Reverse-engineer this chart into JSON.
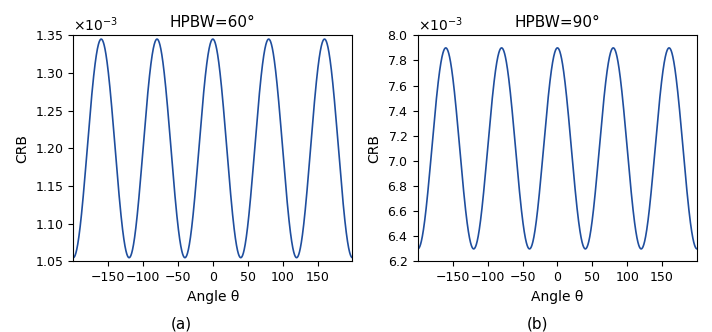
{
  "title_a": "HPBW=60°",
  "title_b": "HPBW=90°",
  "xlabel": "Angle θ",
  "ylabel": "CRB",
  "label_a": "(a)",
  "label_b": "(b)",
  "xmin": -200,
  "xmax": 200,
  "xticks": [
    -150,
    -100,
    -50,
    0,
    50,
    100,
    150
  ],
  "ylim_a": [
    0.00105,
    0.00135
  ],
  "ylim_b": [
    0.0062,
    0.008
  ],
  "yticks_a": [
    0.00105,
    0.0011,
    0.00115,
    0.0012,
    0.00125,
    0.0013,
    0.00135
  ],
  "yticks_b": [
    0.0062,
    0.0064,
    0.0066,
    0.0068,
    0.007,
    0.0072,
    0.0074,
    0.0076,
    0.0078,
    0.008
  ],
  "line_color": "#1f4e9e",
  "line_width": 1.2,
  "amplitude_a": 0.000145,
  "mean_a": 0.0012,
  "amplitude_b": 0.0008,
  "mean_b": 0.0071,
  "period_deg": 80.0,
  "n_points": 2000
}
